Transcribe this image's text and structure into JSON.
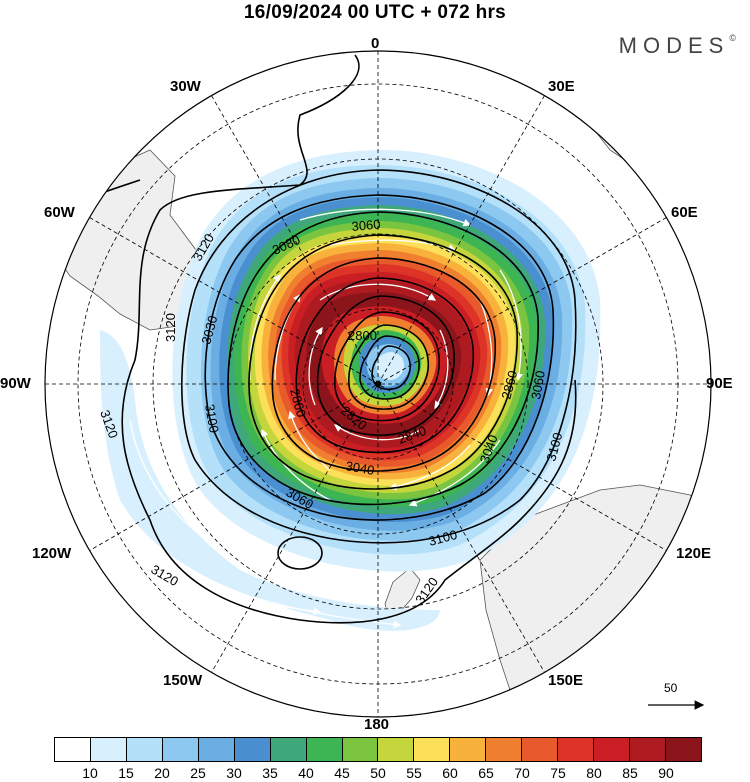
{
  "title": "16/09/2024  00 UTC  + 072 hrs",
  "brand": {
    "name": "MODES",
    "mark": "©"
  },
  "longitude_labels": {
    "0": "0",
    "30E": "30E",
    "60E": "60E",
    "90E": "90E",
    "120E": "120E",
    "150E": "150E",
    "180": "180",
    "150W": "150W",
    "120W": "120W",
    "90W": "90W",
    "60W": "60W",
    "30W": "30W"
  },
  "contour_labels": [
    "3120",
    "3120",
    "3120",
    "3120",
    "3120",
    "3100",
    "3100",
    "3100",
    "3080",
    "3060",
    "3060",
    "3060",
    "3040",
    "3040",
    "2860",
    "2860",
    "2840",
    "2820",
    "2800",
    "3030"
  ],
  "wind_scale": {
    "label": "50",
    "icon": "arrow-right-icon"
  },
  "colorbar": {
    "colors": [
      "#ffffff",
      "#d8f0fd",
      "#b4e0fa",
      "#8cc8f0",
      "#6aaee3",
      "#4a8fd0",
      "#3fa87a",
      "#3cb552",
      "#7bc440",
      "#c5d63c",
      "#fde05a",
      "#f8b23c",
      "#f08030",
      "#e85a2c",
      "#de3428",
      "#c81e24",
      "#ad1a20",
      "#8c151b"
    ],
    "ticks": [
      "10",
      "15",
      "20",
      "25",
      "30",
      "35",
      "40",
      "45",
      "50",
      "55",
      "60",
      "65",
      "70",
      "75",
      "80",
      "85",
      "90"
    ]
  },
  "band_colors": {
    "b15": "#d8f0fd",
    "b20": "#b4e0fa",
    "b25": "#8cc8f0",
    "b30": "#6aaee3",
    "b35": "#4a8fd0",
    "b40": "#3fa87a",
    "b45": "#3cb552",
    "b50": "#7bc440",
    "b55": "#c5d63c",
    "b60": "#fde05a",
    "b65": "#f8b23c",
    "b70": "#f08030",
    "b75": "#e85a2c",
    "b80": "#de3428",
    "b85": "#c81e24",
    "b90": "#ad1a20",
    "b95": "#8c151b"
  },
  "land_color": "#efefef"
}
